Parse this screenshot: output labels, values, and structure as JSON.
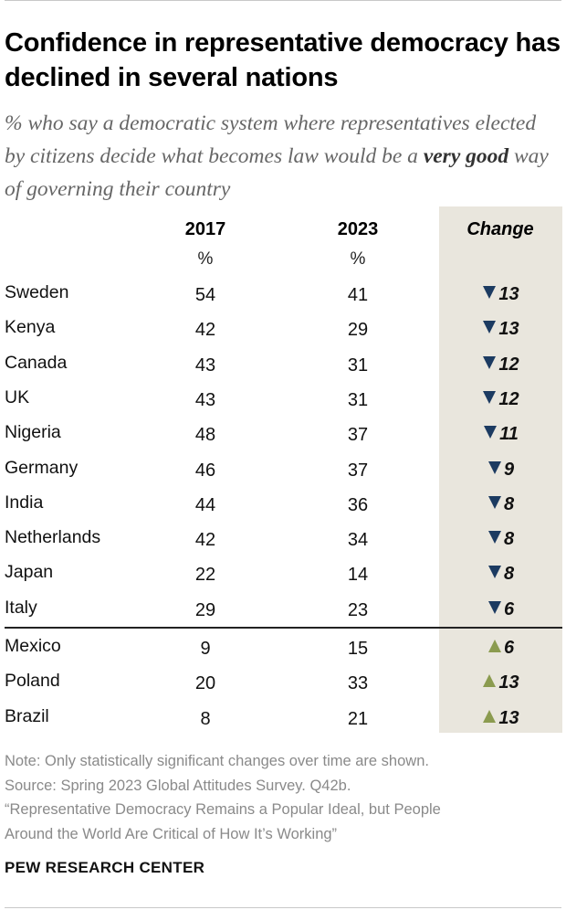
{
  "header": {
    "title": "Confidence in representative democracy has declined in several nations",
    "subtitle_pre": "% who say a democratic system where representatives elected by citizens decide what becomes law would be a ",
    "subtitle_bold": "very good",
    "subtitle_post": " way of governing their country"
  },
  "table": {
    "col_2017": "2017",
    "col_2023": "2023",
    "col_change": "Change",
    "unit_2017": "%",
    "unit_2023": "%"
  },
  "colors": {
    "decline": "#1c3b61",
    "increase": "#8b9b4f",
    "change_column_bg": "#e9e6dd"
  },
  "chart_data": {
    "type": "table",
    "title": "Confidence in representative democracy has declined in several nations",
    "columns": [
      "2017",
      "2023",
      "Change"
    ],
    "rows": [
      {
        "country": "Sweden",
        "y2017": 54,
        "y2023": 41,
        "change": 13,
        "direction": "down"
      },
      {
        "country": "Kenya",
        "y2017": 42,
        "y2023": 29,
        "change": 13,
        "direction": "down"
      },
      {
        "country": "Canada",
        "y2017": 43,
        "y2023": 31,
        "change": 12,
        "direction": "down"
      },
      {
        "country": "UK",
        "y2017": 43,
        "y2023": 31,
        "change": 12,
        "direction": "down"
      },
      {
        "country": "Nigeria",
        "y2017": 48,
        "y2023": 37,
        "change": 11,
        "direction": "down"
      },
      {
        "country": "Germany",
        "y2017": 46,
        "y2023": 37,
        "change": 9,
        "direction": "down"
      },
      {
        "country": "India",
        "y2017": 44,
        "y2023": 36,
        "change": 8,
        "direction": "down"
      },
      {
        "country": "Netherlands",
        "y2017": 42,
        "y2023": 34,
        "change": 8,
        "direction": "down"
      },
      {
        "country": "Japan",
        "y2017": 22,
        "y2023": 14,
        "change": 8,
        "direction": "down"
      },
      {
        "country": "Italy",
        "y2017": 29,
        "y2023": 23,
        "change": 6,
        "direction": "down"
      },
      {
        "country": "Mexico",
        "y2017": 9,
        "y2023": 15,
        "change": 6,
        "direction": "up"
      },
      {
        "country": "Poland",
        "y2017": 20,
        "y2023": 33,
        "change": 13,
        "direction": "up"
      },
      {
        "country": "Brazil",
        "y2017": 8,
        "y2023": 21,
        "change": 13,
        "direction": "up"
      }
    ]
  },
  "footer": {
    "note": "Note: Only statistically significant changes over time are shown.",
    "source": "Source: Spring 2023 Global Attitudes Survey. Q42b.",
    "report_line1": "“Representative Democracy Remains a Popular Ideal, but People",
    "report_line2": "Around the World Are Critical of How It’s Working”",
    "brand": "PEW RESEARCH CENTER"
  }
}
